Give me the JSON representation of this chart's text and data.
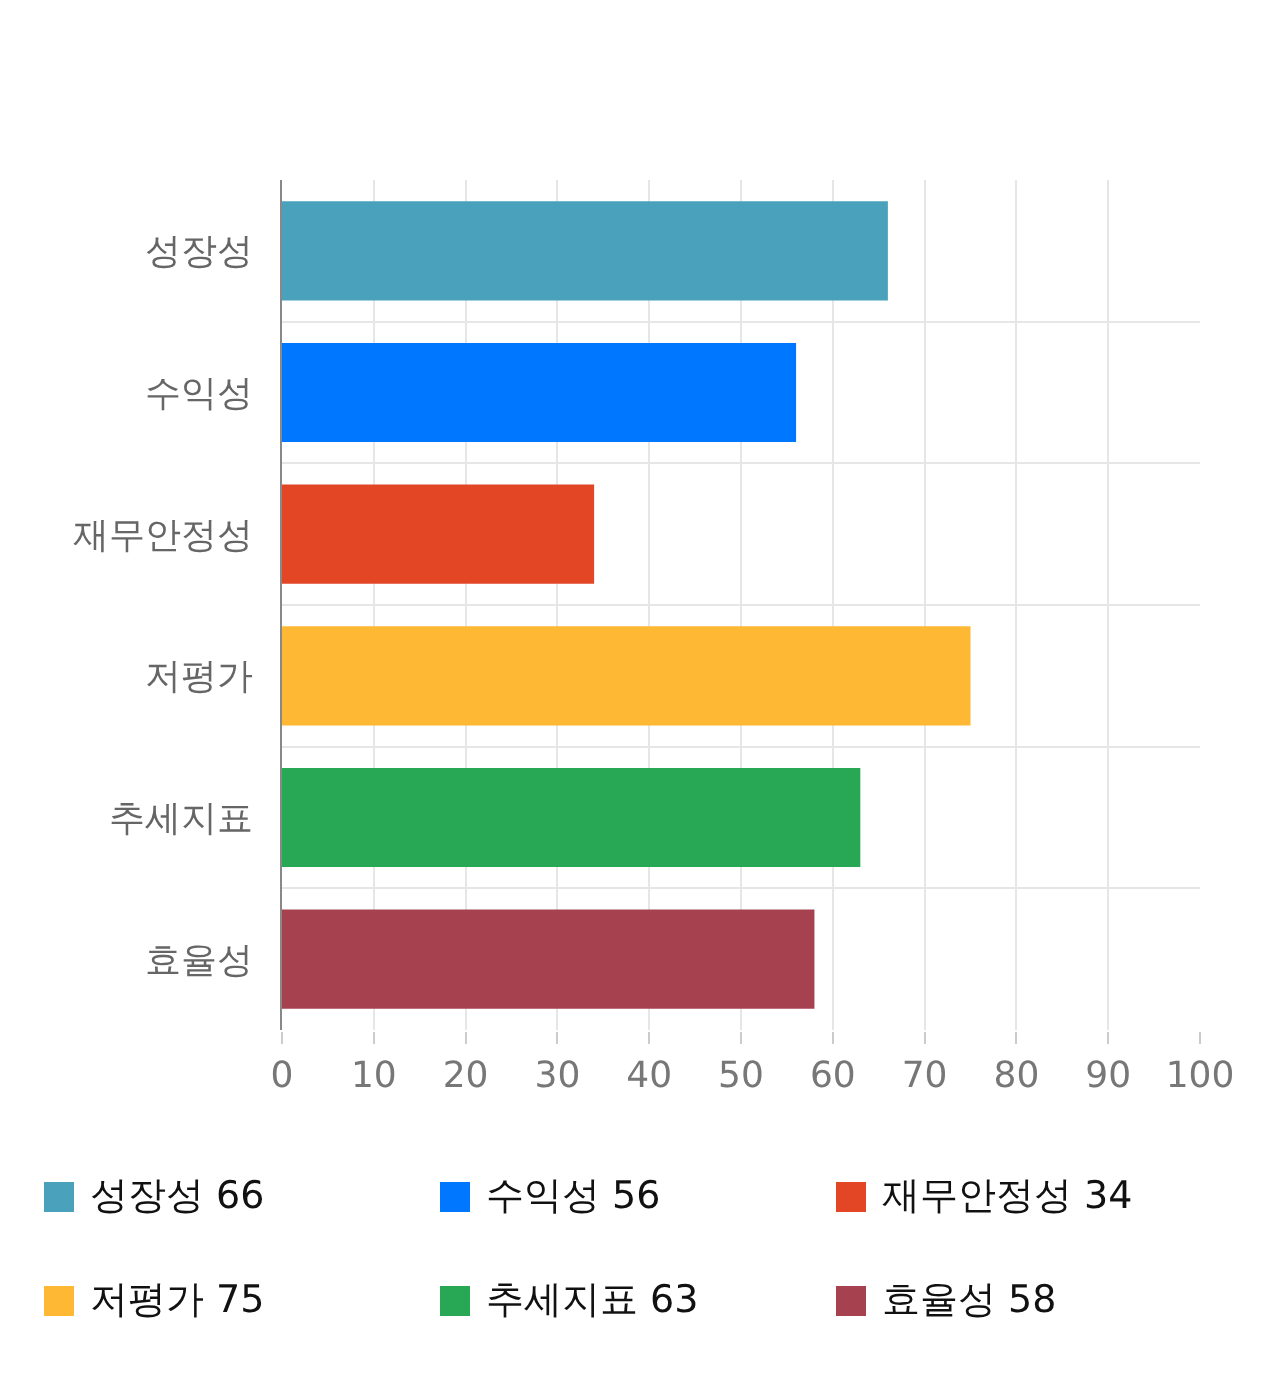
{
  "chart_data": {
    "type": "bar",
    "orientation": "horizontal",
    "categories": [
      "성장성",
      "수익성",
      "재무안정성",
      "저평가",
      "추세지표",
      "효율성"
    ],
    "series": [
      {
        "name": "성장성 66",
        "color": "#4aa1bb",
        "values": [
          66,
          null,
          null,
          null,
          null,
          null
        ]
      },
      {
        "name": "수익성 56",
        "color": "#0077ff",
        "values": [
          null,
          56,
          null,
          null,
          null,
          null
        ]
      },
      {
        "name": "재무안정성 34",
        "color": "#e24625",
        "values": [
          null,
          null,
          34,
          null,
          null,
          null
        ]
      },
      {
        "name": "저평가 75",
        "color": "#ffb833",
        "values": [
          null,
          null,
          null,
          75,
          null,
          null
        ]
      },
      {
        "name": "추세지표 63",
        "color": "#28a855",
        "values": [
          null,
          null,
          null,
          null,
          63,
          null
        ]
      },
      {
        "name": "효율성 58",
        "color": "#a64250",
        "values": [
          null,
          null,
          null,
          null,
          null,
          58
        ]
      }
    ],
    "xlim": [
      0,
      100
    ],
    "xticks": [
      0,
      10,
      20,
      30,
      40,
      50,
      60,
      70,
      80,
      90,
      100
    ],
    "grid": true,
    "legend": "bottom"
  }
}
